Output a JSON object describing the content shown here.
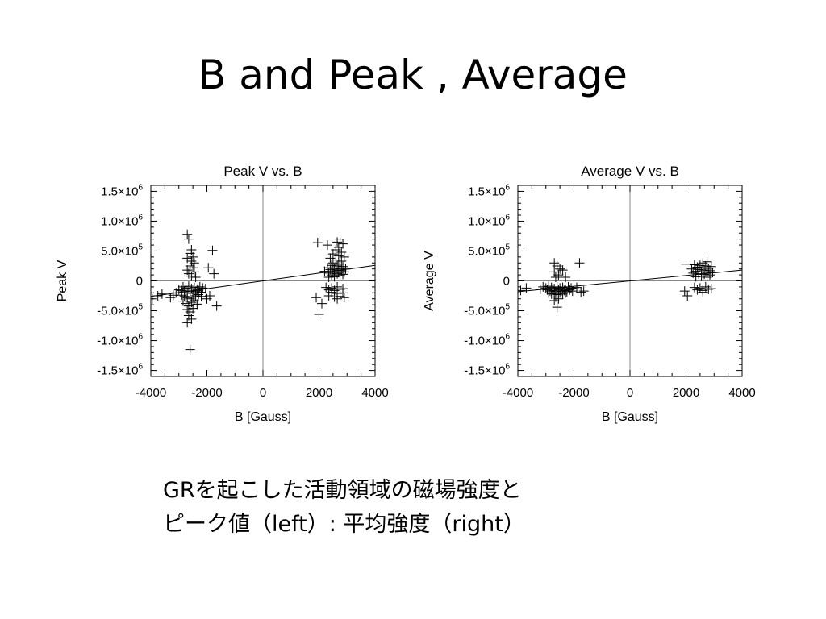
{
  "slide": {
    "title": "B and Peak , Average",
    "caption_line1": "GRを起こした活動領域の磁場強度と",
    "caption_line2": "ピーク値（left）: 平均強度（right）"
  },
  "colors": {
    "axis": "#000000",
    "zero_line": "#888888",
    "marker": "#000000",
    "fit_line": "#000000"
  },
  "chart_data": [
    {
      "type": "scatter",
      "marker": "plus",
      "title": "Peak V vs. B",
      "xlabel": "B [Gauss]",
      "ylabel": "Peak V",
      "xlim": [
        -4000,
        4000
      ],
      "ylim": [
        -1600000,
        1600000
      ],
      "xticks": [
        -4000,
        -2000,
        0,
        2000,
        4000
      ],
      "xtick_labels": [
        "-4000",
        "-2000",
        "0",
        "2000",
        "4000"
      ],
      "yticks": [
        {
          "value": 1500000,
          "mantissa": "1.5×10",
          "exp": "6"
        },
        {
          "value": 1000000,
          "mantissa": "1.0×10",
          "exp": "6"
        },
        {
          "value": 500000,
          "mantissa": "5.0×10",
          "exp": "5"
        },
        {
          "value": 0,
          "mantissa": "0",
          "exp": ""
        },
        {
          "value": -500000,
          "mantissa": "-5.0×10",
          "exp": "5"
        },
        {
          "value": -1000000,
          "mantissa": "-1.0×10",
          "exp": "6"
        },
        {
          "value": -1500000,
          "mantissa": "-1.5×10",
          "exp": "6"
        }
      ],
      "grid": false,
      "zero_lines": true,
      "fit_line": {
        "x": [
          -4000,
          4000
        ],
        "y": [
          -260000,
          260000
        ]
      },
      "points": [
        [
          -3950,
          -300000
        ],
        [
          -3750,
          -250000
        ],
        [
          -3600,
          -220000
        ],
        [
          -2700,
          780000
        ],
        [
          -2650,
          700000
        ],
        [
          -2550,
          520000
        ],
        [
          -2600,
          460000
        ],
        [
          -2500,
          400000
        ],
        [
          -2700,
          380000
        ],
        [
          -2550,
          330000
        ],
        [
          -2450,
          300000
        ],
        [
          -2600,
          250000
        ],
        [
          -2500,
          220000
        ],
        [
          -2700,
          180000
        ],
        [
          -2450,
          150000
        ],
        [
          -2650,
          120000
        ],
        [
          -2550,
          80000
        ],
        [
          -2400,
          60000
        ],
        [
          -1800,
          510000
        ],
        [
          -1950,
          220000
        ],
        [
          -1750,
          120000
        ],
        [
          -2850,
          -100000
        ],
        [
          -2750,
          -120000
        ],
        [
          -2650,
          -90000
        ],
        [
          -2550,
          -130000
        ],
        [
          -2450,
          -110000
        ],
        [
          -2350,
          -140000
        ],
        [
          -2250,
          -100000
        ],
        [
          -2150,
          -120000
        ],
        [
          -2050,
          -130000
        ],
        [
          -2900,
          -160000
        ],
        [
          -2800,
          -180000
        ],
        [
          -2700,
          -200000
        ],
        [
          -2600,
          -170000
        ],
        [
          -2500,
          -210000
        ],
        [
          -2400,
          -180000
        ],
        [
          -2300,
          -160000
        ],
        [
          -2200,
          -190000
        ],
        [
          -3100,
          -200000
        ],
        [
          -3000,
          -150000
        ],
        [
          -2900,
          -240000
        ],
        [
          -2800,
          -260000
        ],
        [
          -2700,
          -280000
        ],
        [
          -2600,
          -300000
        ],
        [
          -2500,
          -270000
        ],
        [
          -2400,
          -250000
        ],
        [
          -2300,
          -230000
        ],
        [
          -2200,
          -260000
        ],
        [
          -3200,
          -240000
        ],
        [
          -3300,
          -280000
        ],
        [
          -2850,
          -340000
        ],
        [
          -2750,
          -380000
        ],
        [
          -2650,
          -420000
        ],
        [
          -2550,
          -360000
        ],
        [
          -2450,
          -330000
        ],
        [
          -2350,
          -390000
        ],
        [
          -2700,
          -480000
        ],
        [
          -2600,
          -520000
        ],
        [
          -2500,
          -460000
        ],
        [
          -2650,
          -580000
        ],
        [
          -2550,
          -640000
        ],
        [
          -2700,
          -700000
        ],
        [
          -2000,
          -300000
        ],
        [
          -1900,
          -250000
        ],
        [
          -1650,
          -420000
        ],
        [
          -2600,
          -1150000
        ],
        [
          1950,
          640000
        ],
        [
          2300,
          600000
        ],
        [
          2750,
          700000
        ],
        [
          2650,
          650000
        ],
        [
          2850,
          620000
        ],
        [
          2700,
          560000
        ],
        [
          2600,
          520000
        ],
        [
          2800,
          480000
        ],
        [
          2500,
          450000
        ],
        [
          2700,
          420000
        ],
        [
          2900,
          400000
        ],
        [
          2400,
          380000
        ],
        [
          2600,
          350000
        ],
        [
          2800,
          330000
        ],
        [
          2500,
          300000
        ],
        [
          2700,
          280000
        ],
        [
          2450,
          260000
        ],
        [
          2650,
          250000
        ],
        [
          2850,
          240000
        ],
        [
          2300,
          220000
        ],
        [
          2550,
          210000
        ],
        [
          2750,
          200000
        ],
        [
          2950,
          200000
        ],
        [
          2400,
          190000
        ],
        [
          2600,
          180000
        ],
        [
          2800,
          170000
        ],
        [
          2200,
          160000
        ],
        [
          2500,
          150000
        ],
        [
          2700,
          140000
        ],
        [
          2900,
          150000
        ],
        [
          2350,
          130000
        ],
        [
          2650,
          120000
        ],
        [
          2850,
          110000
        ],
        [
          2450,
          100000
        ],
        [
          2750,
          90000
        ],
        [
          2550,
          70000
        ],
        [
          2350,
          60000
        ],
        [
          2250,
          -110000
        ],
        [
          2450,
          -120000
        ],
        [
          2650,
          -100000
        ],
        [
          2850,
          -130000
        ],
        [
          2350,
          -150000
        ],
        [
          2550,
          -160000
        ],
        [
          2750,
          -140000
        ],
        [
          2450,
          -190000
        ],
        [
          2650,
          -210000
        ],
        [
          2850,
          -200000
        ],
        [
          2350,
          -250000
        ],
        [
          2550,
          -270000
        ],
        [
          2750,
          -260000
        ],
        [
          2900,
          -280000
        ],
        [
          2650,
          -300000
        ],
        [
          1900,
          -280000
        ],
        [
          2100,
          -380000
        ],
        [
          2000,
          -560000
        ]
      ]
    },
    {
      "type": "scatter",
      "marker": "plus",
      "title": "Average V vs. B",
      "xlabel": "B [Gauss]",
      "ylabel": "Average V",
      "xlim": [
        -4000,
        4000
      ],
      "ylim": [
        -1600000,
        1600000
      ],
      "xticks": [
        -4000,
        -2000,
        0,
        2000,
        4000
      ],
      "xtick_labels": [
        "-4000",
        "-2000",
        "0",
        "2000",
        "4000"
      ],
      "yticks": [
        {
          "value": 1500000,
          "mantissa": "1.5×10",
          "exp": "6"
        },
        {
          "value": 1000000,
          "mantissa": "1.0×10",
          "exp": "6"
        },
        {
          "value": 500000,
          "mantissa": "5.0×10",
          "exp": "5"
        },
        {
          "value": 0,
          "mantissa": "0",
          "exp": ""
        },
        {
          "value": -500000,
          "mantissa": "-5.0×10",
          "exp": "5"
        },
        {
          "value": -1000000,
          "mantissa": "-1.0×10",
          "exp": "6"
        },
        {
          "value": -1500000,
          "mantissa": "-1.5×10",
          "exp": "6"
        }
      ],
      "grid": false,
      "zero_lines": true,
      "fit_line": {
        "x": [
          -4000,
          4000
        ],
        "y": [
          -180000,
          180000
        ]
      },
      "points": [
        [
          -3900,
          -160000
        ],
        [
          -3700,
          -120000
        ],
        [
          -2700,
          300000
        ],
        [
          -2600,
          250000
        ],
        [
          -2500,
          200000
        ],
        [
          -2700,
          150000
        ],
        [
          -2550,
          100000
        ],
        [
          -2400,
          180000
        ],
        [
          -2650,
          60000
        ],
        [
          -2300,
          60000
        ],
        [
          -1800,
          300000
        ],
        [
          -3100,
          -100000
        ],
        [
          -3000,
          -120000
        ],
        [
          -2900,
          -90000
        ],
        [
          -2800,
          -110000
        ],
        [
          -2700,
          -130000
        ],
        [
          -2600,
          -100000
        ],
        [
          -2500,
          -120000
        ],
        [
          -2400,
          -110000
        ],
        [
          -2300,
          -140000
        ],
        [
          -2200,
          -100000
        ],
        [
          -2100,
          -120000
        ],
        [
          -2000,
          -130000
        ],
        [
          -1900,
          -110000
        ],
        [
          -3200,
          -140000
        ],
        [
          -2950,
          -150000
        ],
        [
          -2850,
          -170000
        ],
        [
          -2750,
          -160000
        ],
        [
          -2650,
          -180000
        ],
        [
          -2550,
          -150000
        ],
        [
          -2450,
          -170000
        ],
        [
          -2350,
          -160000
        ],
        [
          -2250,
          -180000
        ],
        [
          -2150,
          -150000
        ],
        [
          -2050,
          -170000
        ],
        [
          -2900,
          -200000
        ],
        [
          -2800,
          -220000
        ],
        [
          -2700,
          -210000
        ],
        [
          -2600,
          -230000
        ],
        [
          -2500,
          -200000
        ],
        [
          -2400,
          -220000
        ],
        [
          -2300,
          -200000
        ],
        [
          -2650,
          -270000
        ],
        [
          -2550,
          -300000
        ],
        [
          -2700,
          -330000
        ],
        [
          -2600,
          -440000
        ],
        [
          -1750,
          -190000
        ],
        [
          -1650,
          -170000
        ],
        [
          2000,
          280000
        ],
        [
          2300,
          270000
        ],
        [
          2600,
          300000
        ],
        [
          2750,
          320000
        ],
        [
          2500,
          260000
        ],
        [
          2700,
          250000
        ],
        [
          2900,
          240000
        ],
        [
          2400,
          230000
        ],
        [
          2600,
          220000
        ],
        [
          2800,
          210000
        ],
        [
          2200,
          200000
        ],
        [
          2450,
          190000
        ],
        [
          2650,
          180000
        ],
        [
          2850,
          170000
        ],
        [
          2350,
          160000
        ],
        [
          2550,
          150000
        ],
        [
          2750,
          140000
        ],
        [
          2950,
          140000
        ],
        [
          2250,
          130000
        ],
        [
          2450,
          120000
        ],
        [
          2650,
          110000
        ],
        [
          2850,
          100000
        ],
        [
          2550,
          80000
        ],
        [
          2350,
          70000
        ],
        [
          2750,
          60000
        ],
        [
          2300,
          -110000
        ],
        [
          2500,
          -120000
        ],
        [
          2700,
          -100000
        ],
        [
          2900,
          -130000
        ],
        [
          2400,
          -150000
        ],
        [
          2600,
          -160000
        ],
        [
          2800,
          -140000
        ],
        [
          1950,
          -170000
        ],
        [
          2050,
          -250000
        ],
        [
          2600,
          -190000
        ]
      ]
    }
  ]
}
